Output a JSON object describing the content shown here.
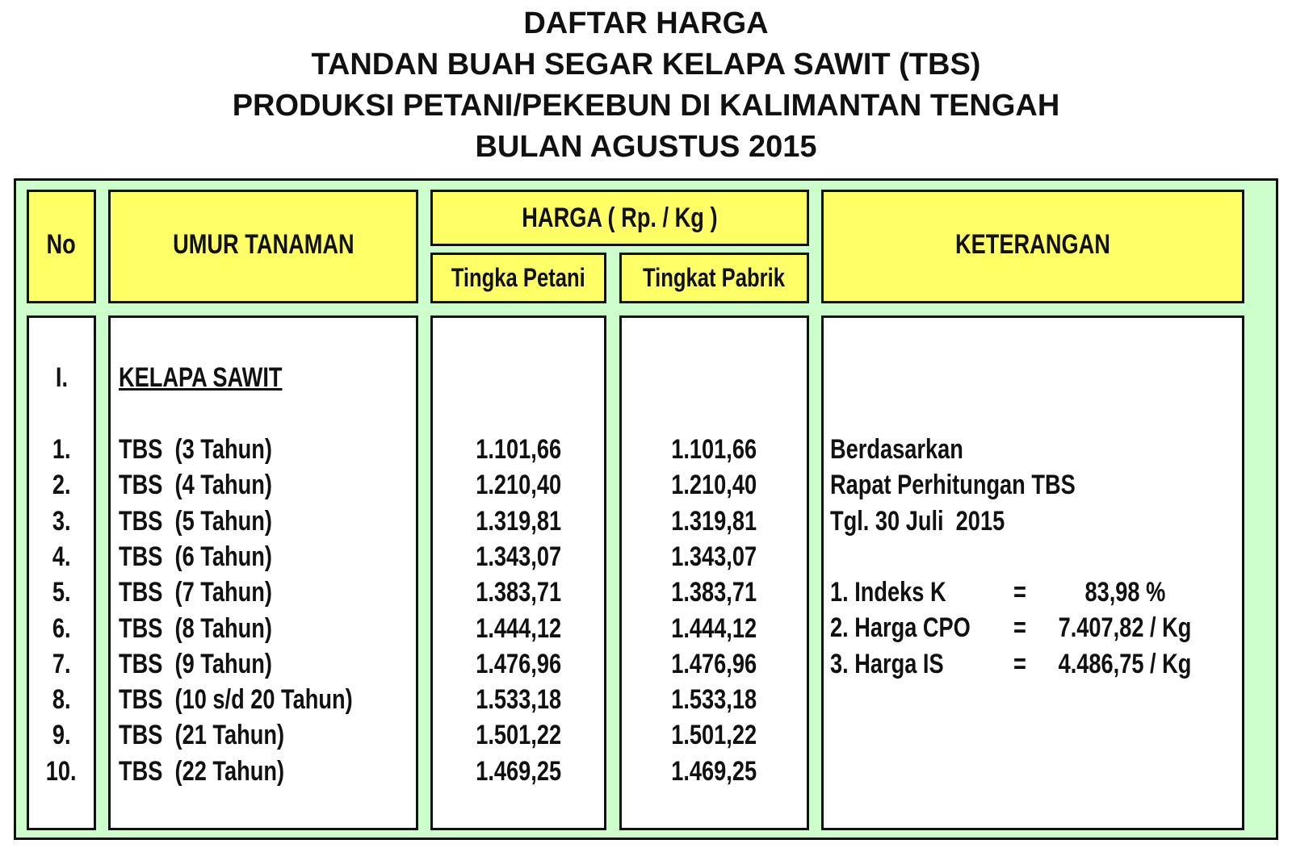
{
  "title": [
    "DAFTAR HARGA",
    "TANDAN BUAH SEGAR KELAPA SAWIT (TBS)",
    "PRODUKSI PETANI/PEKEBUN DI KALIMANTAN TENGAH",
    "BULAN AGUSTUS 2015"
  ],
  "table": {
    "headers": {
      "no": "No",
      "umur": "UMUR TANAMAN",
      "harga": "HARGA ( Rp. / Kg )",
      "petani": "Tingka Petani",
      "pabrik": "Tingkat Pabrik",
      "keterangan": "KETERANGAN"
    },
    "section": {
      "no": "I.",
      "label": "KELAPA SAWIT"
    },
    "rows": [
      [
        "1.",
        "TBS  (3 Tahun)",
        "1.101,66",
        "1.101,66"
      ],
      [
        "2.",
        "TBS  (4 Tahun)",
        "1.210,40",
        "1.210,40"
      ],
      [
        "3.",
        "TBS  (5 Tahun)",
        "1.319,81",
        "1.319,81"
      ],
      [
        "4.",
        "TBS  (6 Tahun)",
        "1.343,07",
        "1.343,07"
      ],
      [
        "5.",
        "TBS  (7 Tahun)",
        "1.383,71",
        "1.383,71"
      ],
      [
        "6.",
        "TBS  (8 Tahun)",
        "1.444,12",
        "1.444,12"
      ],
      [
        "7.",
        "TBS  (9 Tahun)",
        "1.476,96",
        "1.476,96"
      ],
      [
        "8.",
        "TBS  (10 s/d 20 Tahun)",
        "1.533,18",
        "1.533,18"
      ],
      [
        "9.",
        "TBS  (21 Tahun)",
        "1.501,22",
        "1.501,22"
      ],
      [
        "10.",
        "TBS  (22 Tahun)",
        "1.469,25",
        "1.469,25"
      ]
    ]
  },
  "keterangan": {
    "lines": [
      "Berdasarkan",
      "Rapat Perhitungan TBS",
      "Tgl. 30 Juli  2015"
    ],
    "items": [
      [
        "1. Indeks K",
        "=",
        "83,98 %"
      ],
      [
        "2. Harga CPO",
        "=",
        "7.407,82 / Kg"
      ],
      [
        "3. Harga IS",
        "=",
        "4.486,75 / Kg"
      ]
    ]
  }
}
